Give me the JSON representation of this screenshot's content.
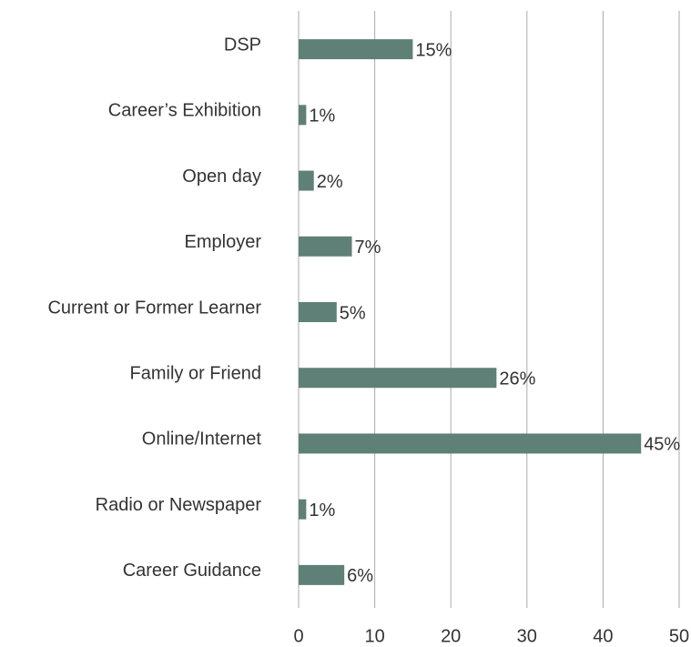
{
  "chart_data": {
    "type": "bar",
    "orientation": "horizontal",
    "categories": [
      "DSP",
      "Career’s Exhibition",
      "Open day",
      "Employer",
      "Current or Former Learner",
      "Family or Friend",
      "Online/Internet",
      "Radio or Newspaper",
      "Career Guidance"
    ],
    "values": [
      15,
      1,
      2,
      7,
      5,
      26,
      45,
      1,
      6
    ],
    "value_labels": [
      "15%",
      "1%",
      "2%",
      "7%",
      "5%",
      "26%",
      "45%",
      "1%",
      "6%"
    ],
    "color": "#5f8077",
    "xlim": [
      0,
      50
    ],
    "xticks": [
      0,
      10,
      20,
      30,
      40,
      50
    ],
    "grid": true
  }
}
